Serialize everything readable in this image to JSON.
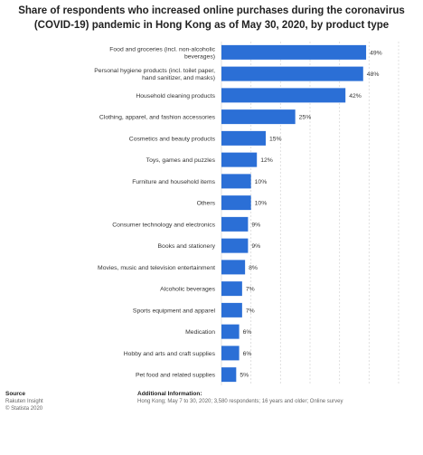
{
  "title": "Share of respondents who increased online purchases during the coronavirus (COVID-19) pandemic in Hong Kong as of May 30, 2020, by product type",
  "footer": {
    "source_heading": "Source",
    "source_lines": [
      "Rakuten Insight",
      "© Statista 2020"
    ],
    "info_heading": "Additional Information:",
    "info_text": "Hong Kong; May 7 to 30, 2020; 3,580 respondents; 16 years and older; Online survey"
  },
  "colors": {
    "bar": "#2b6fd6",
    "grid": "#d9d9d9",
    "text": "#333333"
  },
  "chart_data": {
    "type": "bar",
    "orientation": "horizontal",
    "categories": [
      "Food and groceries (incl. non-alcoholic beverages)",
      "Personal hygiene products (incl. toilet paper, hand sanitizer, and masks)",
      "Household cleaning products",
      "Clothing, apparel, and fashion accessories",
      "Cosmetics and beauty products",
      "Toys, games and puzzles",
      "Furniture and household items",
      "Others",
      "Consumer technology and electronics",
      "Books and stationery",
      "Movies, music and television entertainment",
      "Alcoholic beverages",
      "Sports equipment and apparel",
      "Medication",
      "Hobby and arts and craft supplies",
      "Pet food and related supplies"
    ],
    "values": [
      49,
      48,
      42,
      25,
      15,
      12,
      10,
      10,
      9,
      9,
      8,
      7,
      7,
      6,
      6,
      5
    ],
    "value_labels": [
      "49%",
      "48%",
      "42%",
      "25%",
      "15%",
      "12%",
      "10%",
      "10%",
      "9%",
      "9%",
      "8%",
      "7%",
      "7%",
      "6%",
      "6%",
      "5%"
    ],
    "xlabel": "Share of respondents",
    "xlim": [
      0,
      60
    ],
    "xticks": [
      "0%",
      "10%",
      "20%",
      "30%",
      "40%",
      "50%",
      "60%"
    ],
    "grid": true
  }
}
